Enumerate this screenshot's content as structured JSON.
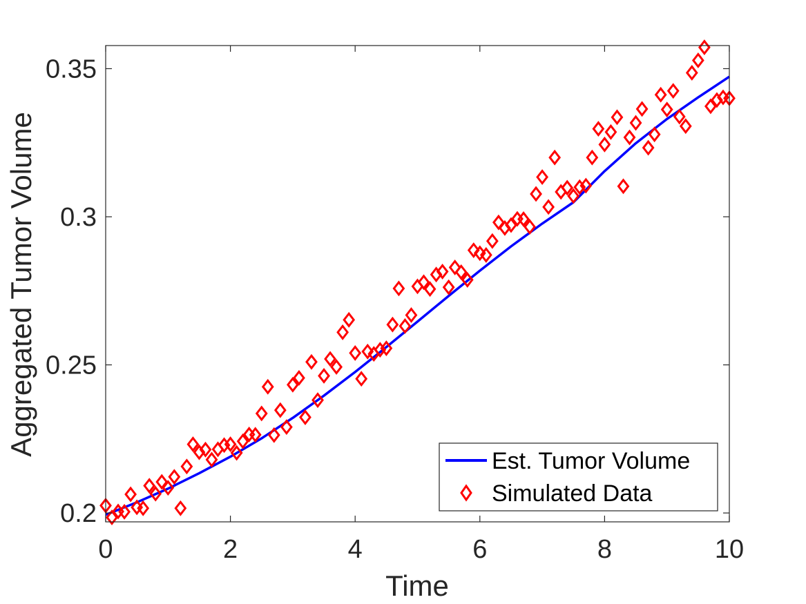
{
  "chart_data": {
    "type": "scatter",
    "xlabel": "Time",
    "ylabel": "Aggregated Tumor Volume",
    "xlim": [
      0,
      10
    ],
    "ylim": [
      0.197,
      0.3578
    ],
    "xticks": [
      0,
      2,
      4,
      6,
      8,
      10
    ],
    "xtick_labels": [
      "0",
      "2",
      "4",
      "6",
      "8",
      "10"
    ],
    "yticks": [
      0.2,
      0.25,
      0.3,
      0.35
    ],
    "ytick_labels": [
      "0.2",
      "0.25",
      "0.3",
      "0.35"
    ],
    "grid": false,
    "box": true,
    "legend_position": "bottom-right",
    "series": [
      {
        "name": "Est. Tumor Volume",
        "kind": "line",
        "color": "#0000ff",
        "x": [
          0,
          0.5,
          1,
          1.5,
          2,
          2.5,
          3,
          3.5,
          4,
          4.5,
          5,
          5.5,
          6,
          6.5,
          7,
          7.5,
          8,
          8.5,
          9,
          9.5,
          10
        ],
        "y": [
          0.1994,
          0.2036,
          0.2082,
          0.2134,
          0.219,
          0.2252,
          0.2321,
          0.2396,
          0.2476,
          0.256,
          0.2646,
          0.2733,
          0.2818,
          0.29,
          0.2977,
          0.3049,
          0.3154,
          0.3248,
          0.333,
          0.3403,
          0.3473
        ]
      },
      {
        "name": "Simulated Data",
        "kind": "marker",
        "marker": "diamond",
        "color": "#ff0000",
        "x": [
          0,
          0.1,
          0.2,
          0.3,
          0.4,
          0.5,
          0.6,
          0.7,
          0.8,
          0.9,
          1.0,
          1.1,
          1.2,
          1.3,
          1.4,
          1.5,
          1.6,
          1.7,
          1.8,
          1.9,
          2.0,
          2.1,
          2.2,
          2.3,
          2.4,
          2.5,
          2.6,
          2.7,
          2.8,
          2.9,
          3.0,
          3.1,
          3.2,
          3.3,
          3.4,
          3.5,
          3.6,
          3.7,
          3.8,
          3.9,
          4.0,
          4.1,
          4.2,
          4.3,
          4.4,
          4.5,
          4.6,
          4.7,
          4.8,
          4.9,
          5.0,
          5.1,
          5.2,
          5.3,
          5.4,
          5.5,
          5.6,
          5.7,
          5.8,
          5.9,
          6.0,
          6.1,
          6.2,
          6.3,
          6.4,
          6.5,
          6.6,
          6.7,
          6.8,
          6.9,
          7.0,
          7.1,
          7.2,
          7.3,
          7.4,
          7.5,
          7.6,
          7.7,
          7.8,
          7.9,
          8.0,
          8.1,
          8.2,
          8.3,
          8.4,
          8.5,
          8.6,
          8.7,
          8.8,
          8.9,
          9.0,
          9.1,
          9.2,
          9.3,
          9.4,
          9.5,
          9.6,
          9.7,
          9.8,
          9.9,
          10.0
        ],
        "y": [
          0.2025,
          0.1985,
          0.2005,
          0.2004,
          0.2063,
          0.2019,
          0.2016,
          0.2092,
          0.2065,
          0.2105,
          0.2085,
          0.2122,
          0.2016,
          0.2157,
          0.2232,
          0.2205,
          0.2214,
          0.218,
          0.2215,
          0.2229,
          0.2232,
          0.2203,
          0.2242,
          0.2265,
          0.2264,
          0.2336,
          0.2426,
          0.2263,
          0.2347,
          0.229,
          0.2433,
          0.2456,
          0.2323,
          0.251,
          0.2381,
          0.2463,
          0.252,
          0.2493,
          0.261,
          0.2652,
          0.254,
          0.2453,
          0.2545,
          0.2537,
          0.2551,
          0.2556,
          0.2636,
          0.2758,
          0.2631,
          0.2668,
          0.2765,
          0.2779,
          0.2756,
          0.2805,
          0.2815,
          0.2762,
          0.2829,
          0.2813,
          0.2787,
          0.2887,
          0.2877,
          0.2871,
          0.2918,
          0.2981,
          0.2962,
          0.2972,
          0.2993,
          0.2992,
          0.2966,
          0.3077,
          0.3134,
          0.3033,
          0.32,
          0.3084,
          0.3098,
          0.307,
          0.31,
          0.3105,
          0.32,
          0.3297,
          0.3244,
          0.3286,
          0.3336,
          0.3103,
          0.3268,
          0.3317,
          0.3364,
          0.3233,
          0.3278,
          0.3412,
          0.3362,
          0.3425,
          0.3338,
          0.3306,
          0.3486,
          0.3528,
          0.3572,
          0.3373,
          0.3394,
          0.3403,
          0.34
        ]
      }
    ]
  }
}
